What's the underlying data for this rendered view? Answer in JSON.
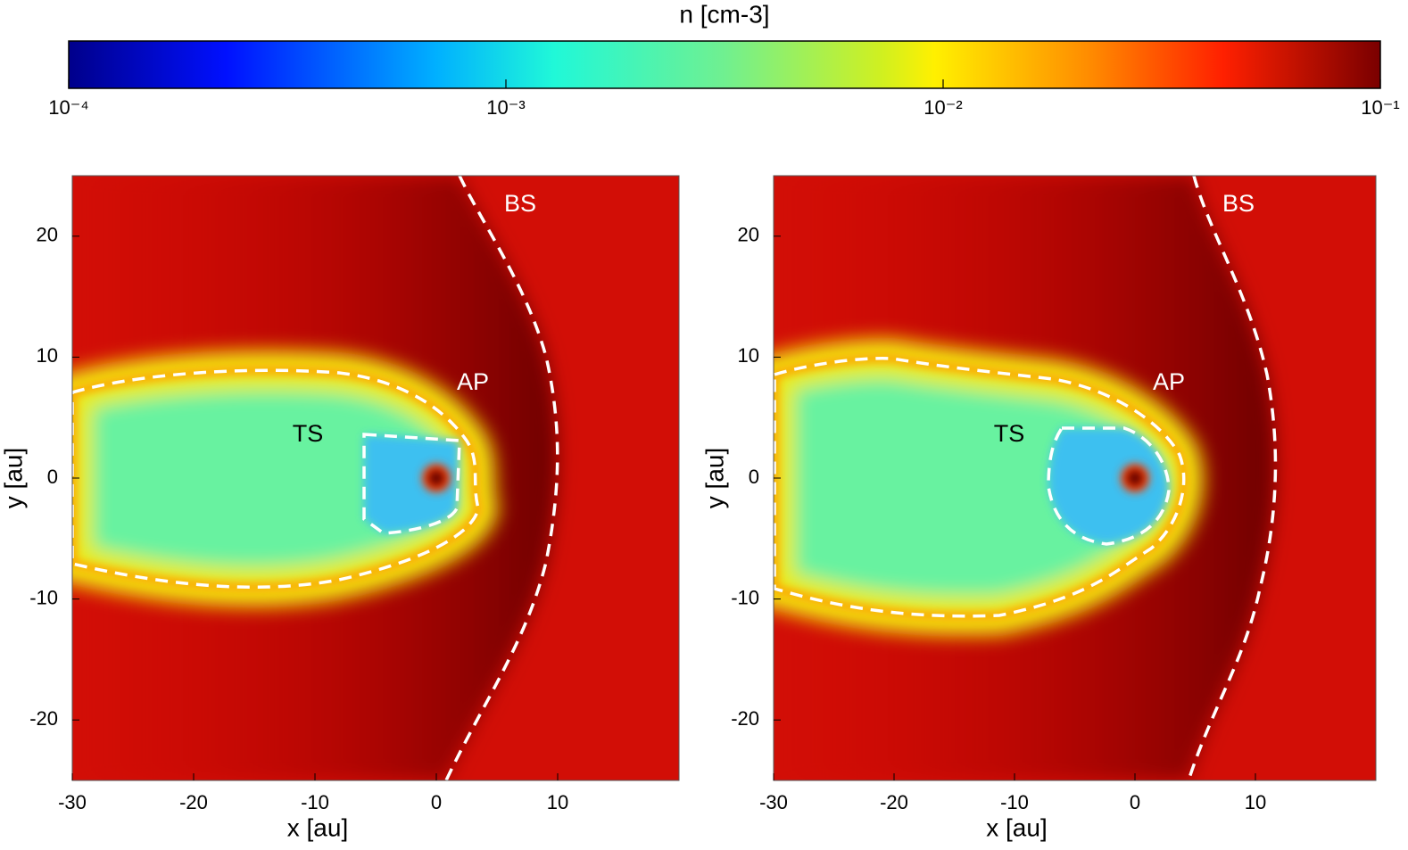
{
  "colorbar": {
    "title": "n [cm-3]",
    "clim": [
      0.0001,
      0.1
    ],
    "log": true,
    "ticks": [
      {
        "value": 0.0001,
        "label": "10⁻⁴"
      },
      {
        "value": 0.001,
        "label": "10⁻³"
      },
      {
        "value": 0.01,
        "label": "10⁻²"
      },
      {
        "value": 0.1,
        "label": "10⁻¹"
      }
    ]
  },
  "chart_data": [
    {
      "type": "heatmap",
      "xlabel": "x [au]",
      "ylabel": "y [au]",
      "xlim": [
        -30,
        20
      ],
      "ylim": [
        -25,
        25
      ],
      "xticks": [
        -30,
        -20,
        -10,
        0,
        10
      ],
      "yticks": [
        -20,
        -10,
        0,
        10,
        20
      ],
      "annotations": [
        "TS",
        "AP",
        "BS"
      ]
    },
    {
      "type": "heatmap",
      "xlabel": "x [au]",
      "ylabel": "y [au]",
      "xlim": [
        -30,
        20
      ],
      "ylim": [
        -25,
        25
      ],
      "xticks": [
        -30,
        -20,
        -10,
        0,
        10
      ],
      "yticks": [
        -20,
        -10,
        0,
        10,
        20
      ],
      "annotations": [
        "TS",
        "AP",
        "BS"
      ]
    }
  ]
}
